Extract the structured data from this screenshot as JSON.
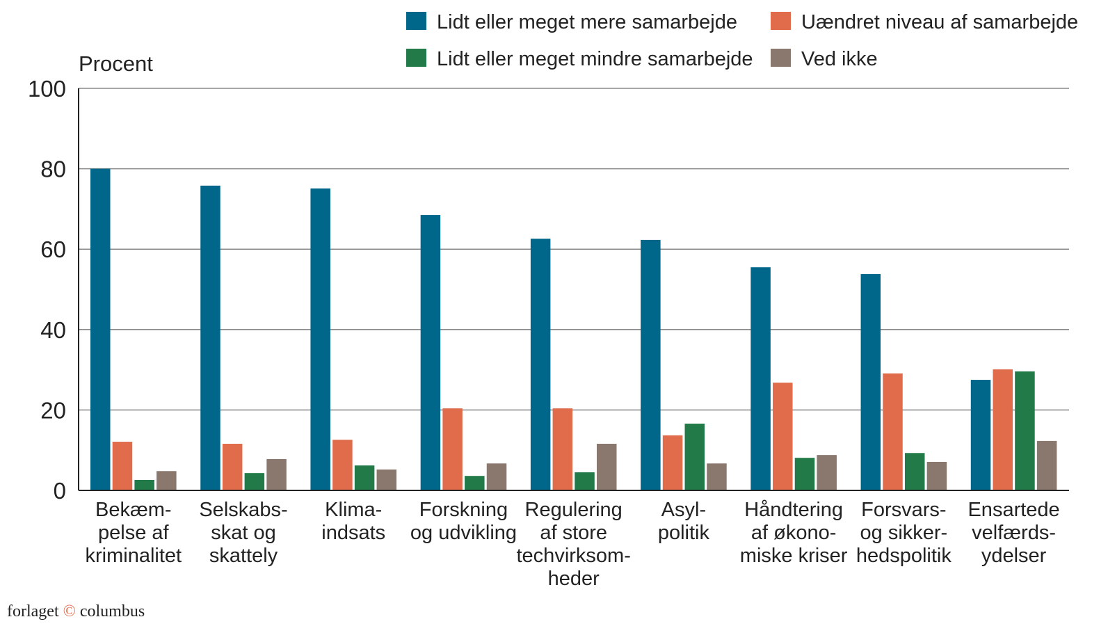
{
  "chart_data": {
    "type": "bar",
    "ylabel": "Procent",
    "ylim": [
      0,
      100
    ],
    "yticks": [
      0,
      20,
      40,
      60,
      80,
      100
    ],
    "grid": true,
    "legend_position": "top-right",
    "categories": [
      [
        "Bekæm-",
        "pelse af",
        "kriminalitet"
      ],
      [
        "Selskabs-",
        "skat og",
        "skattely"
      ],
      [
        "Klima-",
        "indsats"
      ],
      [
        "Forskning",
        "og udvikling"
      ],
      [
        "Regulering",
        "af store",
        "techvirksom-",
        "heder"
      ],
      [
        "Asyl-",
        "politik"
      ],
      [
        "Håndtering",
        "af økono-",
        "miske kriser"
      ],
      [
        "Forsvars-",
        "og sikker-",
        "hedspolitik"
      ],
      [
        "Ensartede",
        "velfærds-",
        "ydelser"
      ]
    ],
    "series": [
      {
        "name": "Lidt eller meget mere samarbejde",
        "color": "#00668a",
        "values": [
          80,
          75.8,
          75.1,
          68.5,
          62.6,
          62.3,
          55.5,
          53.8,
          27.5
        ]
      },
      {
        "name": "Uændret niveau af samarbejde",
        "color": "#e06c4c",
        "values": [
          12.1,
          11.6,
          12.6,
          20.4,
          20.4,
          13.7,
          26.8,
          29.1,
          30.1
        ]
      },
      {
        "name": "Lidt eller meget mindre samarbejde",
        "color": "#217a47",
        "values": [
          2.6,
          4.3,
          6.2,
          3.6,
          4.5,
          16.6,
          8.1,
          9.3,
          29.6
        ]
      },
      {
        "name": "Ved ikke",
        "color": "#8a776d",
        "values": [
          4.8,
          7.8,
          5.2,
          6.7,
          11.6,
          6.7,
          8.8,
          7.1,
          12.3
        ]
      }
    ]
  },
  "watermark": "forlaget © columbus"
}
